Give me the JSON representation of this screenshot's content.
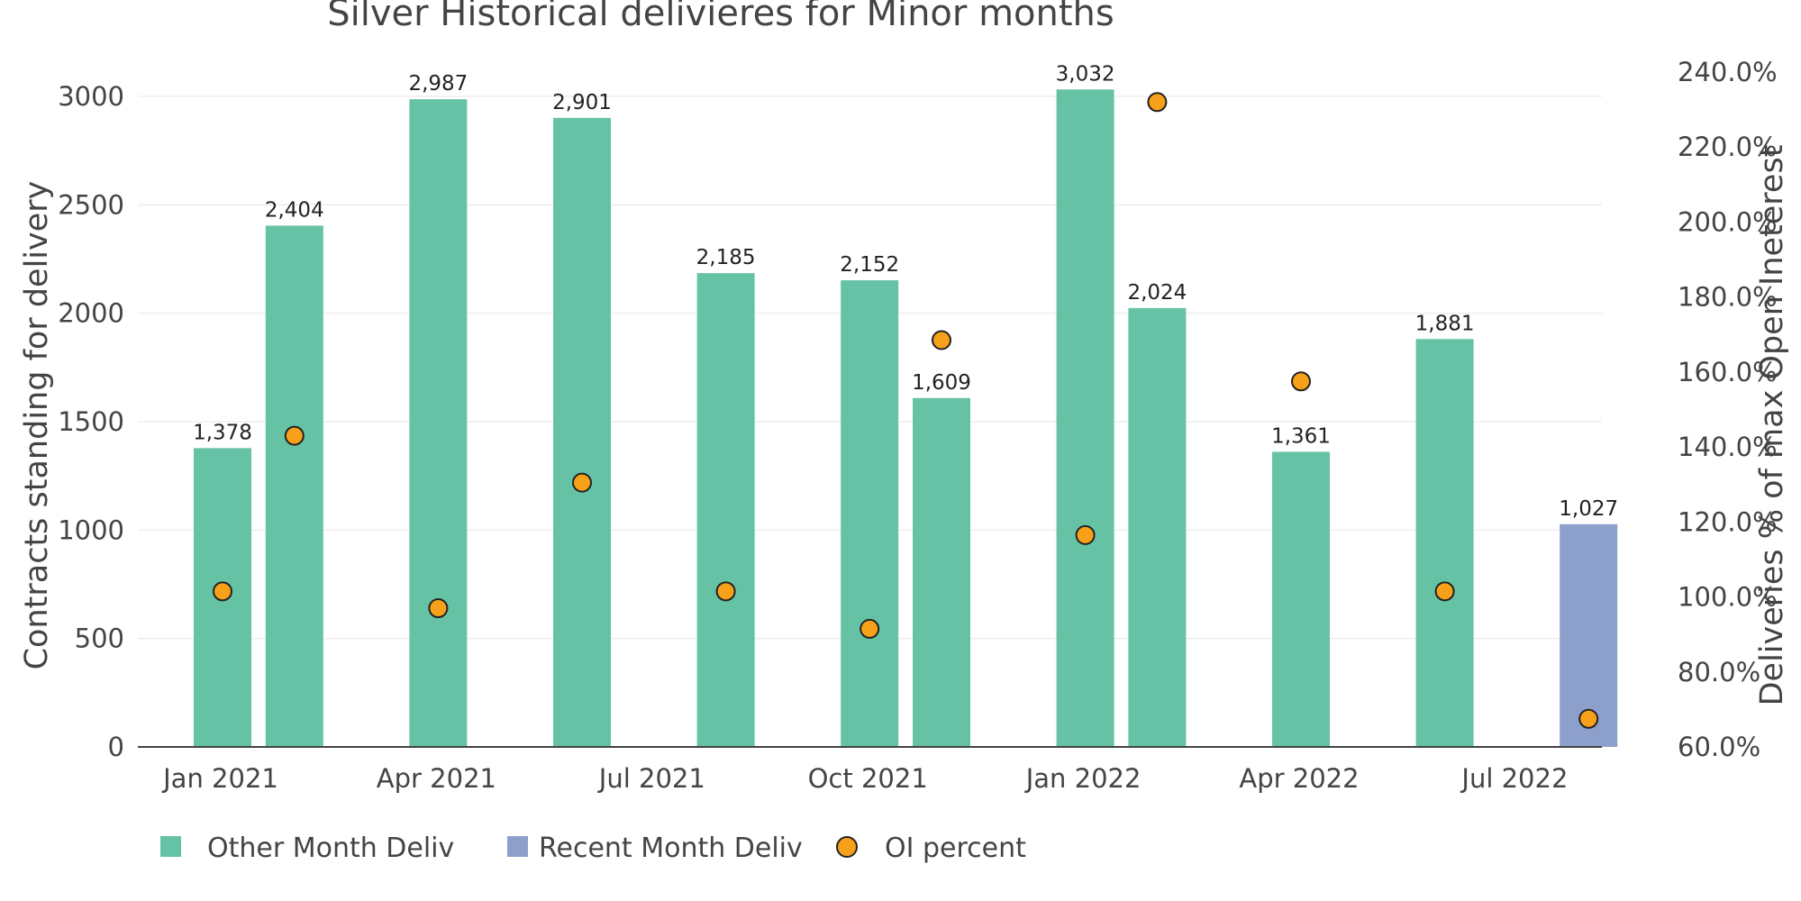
{
  "chart_data": {
    "type": "bar",
    "title": "Silver Historical delivieres for Minor months",
    "ylabel": "Contracts standing for delivery",
    "y2label": "Deliveries % of max Open Ineterest",
    "ylim": [
      0,
      3000
    ],
    "y2lim": [
      60,
      240
    ],
    "yticks": [
      "0",
      "500",
      "1000",
      "1500",
      "2000",
      "2500",
      "3000"
    ],
    "y2ticks": [
      "60.0%",
      "80.0%",
      "100.0%",
      "120.0%",
      "140.0%",
      "160.0%",
      "180.0%",
      "200.0%",
      "220.0%",
      "240.0%"
    ],
    "xticks": [
      "Jan 2021",
      "Apr 2021",
      "Jul 2021",
      "Oct 2021",
      "Jan 2022",
      "Apr 2022",
      "Jul 2022"
    ],
    "grid": true,
    "legend_position": "bottom-left",
    "months": [
      "2021-01",
      "2021-02",
      "2021-04",
      "2021-06",
      "2021-08",
      "2021-10",
      "2021-11",
      "2022-01",
      "2022-02",
      "2022-04",
      "2022-06",
      "2022-08"
    ],
    "series": [
      {
        "name": "Other Month Deliv",
        "kind": "bar",
        "color": "#66c2a5",
        "values": [
          1378,
          2404,
          2987,
          2901,
          2185,
          2152,
          1609,
          3032,
          2024,
          1361,
          1881,
          null
        ],
        "labels": [
          "1,378",
          "2,404",
          "2,987",
          "2,901",
          "2,185",
          "2,152",
          "1,609",
          "3,032",
          "2,024",
          "1,361",
          "1,881",
          ""
        ]
      },
      {
        "name": "Recent Month Deliv",
        "kind": "bar",
        "color": "#8da0cb",
        "values": [
          null,
          null,
          null,
          null,
          null,
          null,
          null,
          null,
          null,
          null,
          null,
          1027
        ],
        "labels": [
          "",
          "",
          "",
          "",
          "",
          "",
          "",
          "",
          "",
          "",
          "",
          "1,027"
        ]
      },
      {
        "name": "OI percent",
        "kind": "scatter",
        "axis": "y2",
        "color": "#f7a11a",
        "months": [
          "2021-01",
          "2021-02",
          "2021-04",
          "2021-06",
          "2021-08",
          "2021-10",
          "2021-11",
          "2022-01",
          "2022-02",
          "2022-04",
          "2022-06",
          "2022-08"
        ],
        "values": [
          101.5,
          143,
          97,
          130.5,
          101.5,
          91.5,
          168.5,
          116.5,
          232,
          157.5,
          101.5,
          67.5
        ]
      }
    ]
  }
}
